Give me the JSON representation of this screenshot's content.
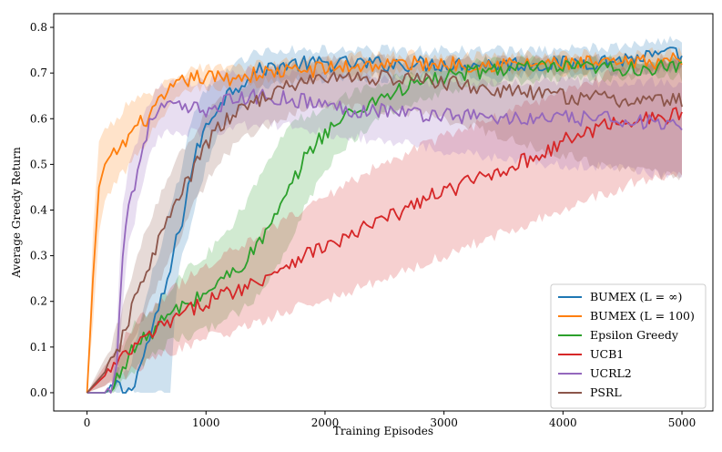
{
  "chart_data": {
    "type": "line",
    "title": "",
    "xlabel": "Training Episodes",
    "ylabel": "Average Greedy Return",
    "xlim": [
      -280,
      5260
    ],
    "ylim": [
      -0.04,
      0.83
    ],
    "xticks": [
      0,
      1000,
      2000,
      3000,
      4000,
      5000
    ],
    "xtick_labels": [
      "0",
      "1000",
      "2000",
      "3000",
      "4000",
      "5000"
    ],
    "yticks": [
      0.0,
      0.1,
      0.2,
      0.3,
      0.4,
      0.5,
      0.6,
      0.7,
      0.8
    ],
    "ytick_labels": [
      "0.0",
      "0.1",
      "0.2",
      "0.3",
      "0.4",
      "0.5",
      "0.6",
      "0.7",
      "0.8"
    ],
    "grid": false,
    "legend_position": "lower-right",
    "series": [
      {
        "name": "BUMEX (L = ∞)",
        "color": "#1f77b4",
        "x": [
          0,
          200,
          250,
          300,
          350,
          400,
          450,
          500,
          550,
          600,
          650,
          700,
          750,
          800,
          850,
          900,
          950,
          1000,
          1100,
          1200,
          1300,
          1400,
          1500,
          1700,
          2000,
          2500,
          3000,
          3500,
          4000,
          4500,
          4900,
          5000
        ],
        "y": [
          0.0,
          0.0,
          0.02,
          0.0,
          0.0,
          0.03,
          0.06,
          0.1,
          0.14,
          0.18,
          0.22,
          0.27,
          0.33,
          0.38,
          0.45,
          0.51,
          0.55,
          0.58,
          0.63,
          0.66,
          0.68,
          0.7,
          0.71,
          0.72,
          0.72,
          0.72,
          0.72,
          0.72,
          0.72,
          0.73,
          0.74,
          0.74
        ],
        "band_low": [
          0.0,
          0.0,
          0.0,
          0.0,
          0.0,
          0.0,
          0.0,
          0.0,
          0.0,
          0.0,
          0.0,
          0.0,
          0.22,
          0.3,
          0.35,
          0.4,
          0.45,
          0.5,
          0.56,
          0.6,
          0.63,
          0.65,
          0.67,
          0.68,
          0.69,
          0.69,
          0.69,
          0.69,
          0.7,
          0.7,
          0.71,
          0.71
        ],
        "band_high": [
          0.0,
          0.0,
          0.05,
          0.05,
          0.05,
          0.1,
          0.15,
          0.2,
          0.26,
          0.3,
          0.35,
          0.4,
          0.45,
          0.5,
          0.56,
          0.61,
          0.64,
          0.66,
          0.69,
          0.71,
          0.73,
          0.74,
          0.75,
          0.75,
          0.75,
          0.75,
          0.75,
          0.75,
          0.75,
          0.76,
          0.77,
          0.77
        ]
      },
      {
        "name": "BUMEX (L = 100)",
        "color": "#ff7f0e",
        "x": [
          0,
          50,
          100,
          150,
          200,
          250,
          300,
          350,
          400,
          500,
          600,
          700,
          800,
          900,
          1000,
          1200,
          1500,
          2000,
          2500,
          3000,
          3500,
          4000,
          4500,
          5000
        ],
        "y": [
          0.0,
          0.25,
          0.45,
          0.5,
          0.51,
          0.53,
          0.54,
          0.56,
          0.58,
          0.6,
          0.63,
          0.66,
          0.68,
          0.69,
          0.69,
          0.69,
          0.7,
          0.71,
          0.72,
          0.72,
          0.72,
          0.72,
          0.72,
          0.73
        ],
        "band_low": [
          0.0,
          0.15,
          0.35,
          0.42,
          0.44,
          0.46,
          0.48,
          0.5,
          0.52,
          0.55,
          0.59,
          0.63,
          0.65,
          0.67,
          0.67,
          0.67,
          0.68,
          0.69,
          0.7,
          0.7,
          0.7,
          0.7,
          0.71,
          0.71
        ],
        "band_high": [
          0.0,
          0.35,
          0.55,
          0.58,
          0.59,
          0.6,
          0.62,
          0.63,
          0.64,
          0.65,
          0.67,
          0.69,
          0.7,
          0.71,
          0.71,
          0.71,
          0.72,
          0.73,
          0.74,
          0.74,
          0.74,
          0.74,
          0.74,
          0.75
        ]
      },
      {
        "name": "Epsilon Greedy",
        "color": "#2ca02c",
        "x": [
          0,
          200,
          300,
          400,
          500,
          600,
          700,
          800,
          900,
          1000,
          1100,
          1200,
          1300,
          1400,
          1500,
          1600,
          1700,
          1800,
          1900,
          2000,
          2100,
          2200,
          2300,
          2400,
          2500,
          2600,
          2800,
          3000,
          3200,
          3500,
          4000,
          4500,
          5000
        ],
        "y": [
          0.0,
          0.0,
          0.06,
          0.1,
          0.12,
          0.15,
          0.17,
          0.19,
          0.2,
          0.22,
          0.24,
          0.26,
          0.28,
          0.31,
          0.35,
          0.39,
          0.44,
          0.5,
          0.54,
          0.57,
          0.59,
          0.61,
          0.62,
          0.64,
          0.65,
          0.66,
          0.68,
          0.69,
          0.7,
          0.71,
          0.71,
          0.71,
          0.71
        ],
        "band_low": [
          0.0,
          0.0,
          0.02,
          0.05,
          0.07,
          0.09,
          0.11,
          0.12,
          0.13,
          0.14,
          0.15,
          0.17,
          0.18,
          0.2,
          0.23,
          0.27,
          0.33,
          0.39,
          0.44,
          0.48,
          0.52,
          0.55,
          0.57,
          0.59,
          0.61,
          0.62,
          0.64,
          0.66,
          0.67,
          0.68,
          0.69,
          0.69,
          0.69
        ],
        "band_high": [
          0.0,
          0.0,
          0.1,
          0.15,
          0.17,
          0.2,
          0.23,
          0.26,
          0.28,
          0.3,
          0.33,
          0.36,
          0.4,
          0.45,
          0.5,
          0.55,
          0.58,
          0.6,
          0.61,
          0.63,
          0.64,
          0.65,
          0.66,
          0.67,
          0.68,
          0.69,
          0.7,
          0.71,
          0.72,
          0.73,
          0.73,
          0.73,
          0.73
        ]
      },
      {
        "name": "UCB1",
        "color": "#d62728",
        "x": [
          0,
          200,
          400,
          600,
          800,
          1000,
          1200,
          1400,
          1600,
          1800,
          2000,
          2200,
          2400,
          2600,
          2800,
          3000,
          3200,
          3400,
          3600,
          3800,
          4000,
          4200,
          4400,
          4600,
          4800,
          5000
        ],
        "y": [
          0.0,
          0.05,
          0.1,
          0.14,
          0.17,
          0.2,
          0.22,
          0.24,
          0.27,
          0.3,
          0.32,
          0.34,
          0.37,
          0.39,
          0.42,
          0.44,
          0.46,
          0.48,
          0.5,
          0.52,
          0.55,
          0.57,
          0.59,
          0.6,
          0.6,
          0.61
        ],
        "band_low": [
          0.0,
          0.02,
          0.05,
          0.08,
          0.1,
          0.12,
          0.13,
          0.15,
          0.17,
          0.19,
          0.2,
          0.22,
          0.24,
          0.26,
          0.28,
          0.3,
          0.32,
          0.34,
          0.36,
          0.38,
          0.4,
          0.42,
          0.44,
          0.46,
          0.47,
          0.48
        ],
        "band_high": [
          0.0,
          0.08,
          0.15,
          0.2,
          0.24,
          0.28,
          0.31,
          0.34,
          0.37,
          0.4,
          0.43,
          0.46,
          0.49,
          0.51,
          0.54,
          0.56,
          0.58,
          0.6,
          0.62,
          0.64,
          0.66,
          0.68,
          0.7,
          0.71,
          0.72,
          0.73
        ]
      },
      {
        "name": "UCRL2",
        "color": "#9467bd",
        "x": [
          0,
          200,
          250,
          300,
          350,
          400,
          450,
          500,
          550,
          600,
          700,
          800,
          900,
          1000,
          1200,
          1500,
          1800,
          2000,
          2200,
          2500,
          2800,
          3000,
          3500,
          4000,
          4500,
          5000
        ],
        "y": [
          0.0,
          0.0,
          0.08,
          0.3,
          0.42,
          0.45,
          0.52,
          0.57,
          0.6,
          0.62,
          0.63,
          0.62,
          0.62,
          0.62,
          0.64,
          0.65,
          0.64,
          0.63,
          0.62,
          0.62,
          0.61,
          0.61,
          0.6,
          0.6,
          0.6,
          0.58
        ],
        "band_low": [
          0.0,
          0.0,
          0.03,
          0.2,
          0.33,
          0.38,
          0.44,
          0.5,
          0.53,
          0.56,
          0.57,
          0.57,
          0.57,
          0.57,
          0.58,
          0.59,
          0.58,
          0.57,
          0.56,
          0.55,
          0.54,
          0.53,
          0.51,
          0.5,
          0.49,
          0.47
        ],
        "band_high": [
          0.0,
          0.0,
          0.15,
          0.4,
          0.5,
          0.53,
          0.58,
          0.62,
          0.65,
          0.67,
          0.68,
          0.68,
          0.68,
          0.68,
          0.7,
          0.71,
          0.7,
          0.7,
          0.69,
          0.69,
          0.68,
          0.68,
          0.68,
          0.68,
          0.68,
          0.68
        ]
      },
      {
        "name": "PSRL",
        "color": "#8c564b",
        "x": [
          0,
          200,
          300,
          400,
          500,
          600,
          700,
          800,
          900,
          1000,
          1100,
          1200,
          1400,
          1600,
          1800,
          2000,
          2500,
          3000,
          3500,
          4000,
          4500,
          5000
        ],
        "y": [
          0.0,
          0.06,
          0.12,
          0.2,
          0.27,
          0.33,
          0.39,
          0.44,
          0.49,
          0.54,
          0.58,
          0.6,
          0.64,
          0.66,
          0.68,
          0.69,
          0.69,
          0.68,
          0.66,
          0.65,
          0.64,
          0.64
        ],
        "band_low": [
          0.0,
          0.02,
          0.06,
          0.12,
          0.18,
          0.24,
          0.3,
          0.35,
          0.41,
          0.46,
          0.5,
          0.53,
          0.57,
          0.6,
          0.62,
          0.63,
          0.62,
          0.6,
          0.56,
          0.52,
          0.49,
          0.47
        ],
        "band_high": [
          0.0,
          0.1,
          0.18,
          0.28,
          0.36,
          0.42,
          0.48,
          0.53,
          0.57,
          0.61,
          0.64,
          0.66,
          0.69,
          0.71,
          0.72,
          0.73,
          0.73,
          0.73,
          0.73,
          0.73,
          0.73,
          0.73
        ]
      }
    ]
  }
}
